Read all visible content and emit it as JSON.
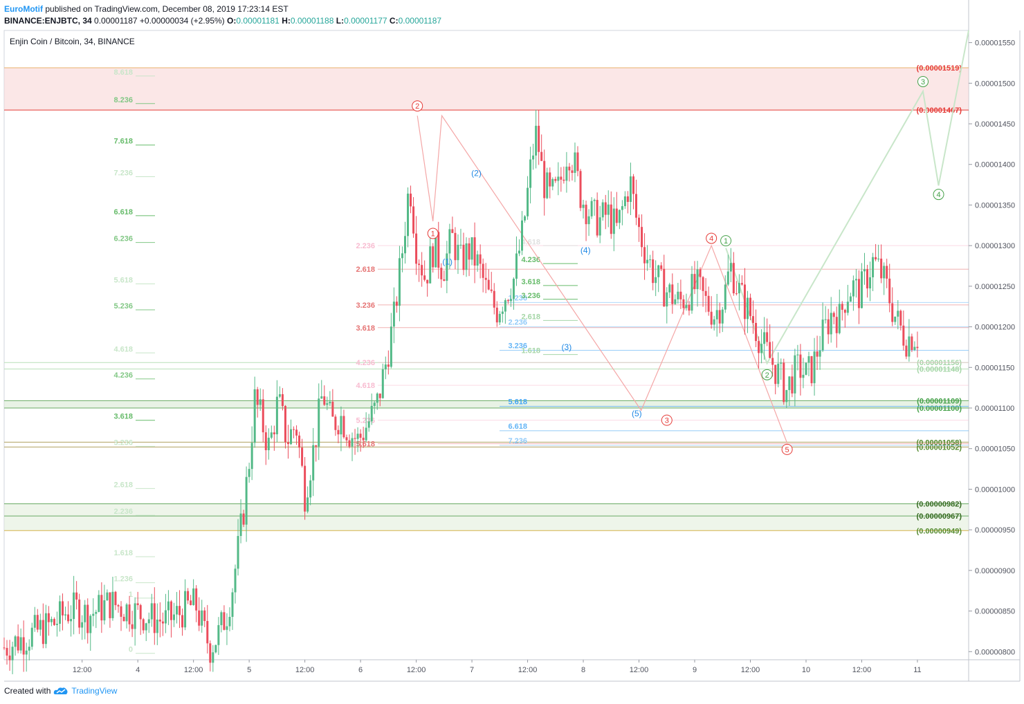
{
  "header": {
    "author": "EuroMotif",
    "published": "published on TradingView.com, December 08, 2019 17:23:14 EST",
    "symbol": "BINANCE:ENJBTC, 34",
    "last": "0.00001187",
    "change": "+0.00000034 (+2.95%)",
    "o_label": "O:",
    "o": "0.00001181",
    "h_label": "H:",
    "h": "0.00001188",
    "l_label": "L:",
    "l": "0.00001177",
    "c_label": "C:",
    "c": "0.00001187"
  },
  "footer": {
    "created_with": "Created with",
    "brand": "TradingView"
  },
  "chart_data": {
    "type": "candlestick",
    "title": "Enjin Coin / Bitcoin, 34, BINANCE",
    "y_axis": {
      "ticks": [
        "0.00001550",
        "0.00001500",
        "0.00001450",
        "0.00001400",
        "0.00001350",
        "0.00001300",
        "0.00001250",
        "0.00001200",
        "0.00001150",
        "0.00001100",
        "0.00001050",
        "0.00001000",
        "0.00000950",
        "0.00000900",
        "0.00000850",
        "0.00000800"
      ],
      "range": [
        7.9e-06,
        1.565e-05
      ]
    },
    "x_axis": {
      "ticks": [
        {
          "label": "12:00",
          "t": 0.7
        },
        {
          "label": "4",
          "t": 1.2
        },
        {
          "label": "12:00",
          "t": 1.7
        },
        {
          "label": "5",
          "t": 2.2
        },
        {
          "label": "12:00",
          "t": 2.7
        },
        {
          "label": "6",
          "t": 3.2
        },
        {
          "label": "12:00",
          "t": 3.7
        },
        {
          "label": "7",
          "t": 4.2
        },
        {
          "label": "12:00",
          "t": 4.7
        },
        {
          "label": "8",
          "t": 5.2
        },
        {
          "label": "12:00",
          "t": 5.7
        },
        {
          "label": "9",
          "t": 6.2
        },
        {
          "label": "12:00",
          "t": 6.7
        },
        {
          "label": "10",
          "t": 7.2
        },
        {
          "label": "12:00",
          "t": 7.7
        },
        {
          "label": "11",
          "t": 8.2
        }
      ],
      "range": [
        0.0,
        8.66
      ]
    },
    "price_path": [
      [
        0.0,
        8.05e-06
      ],
      [
        0.15,
        8.15e-06
      ],
      [
        0.3,
        8.25e-06
      ],
      [
        0.45,
        8.35e-06
      ],
      [
        0.55,
        8.48e-06
      ],
      [
        0.65,
        8.53e-06
      ],
      [
        0.75,
        8.45e-06
      ],
      [
        0.85,
        8.52e-06
      ],
      [
        0.95,
        8.6e-06
      ],
      [
        1.05,
        8.55e-06
      ],
      [
        1.15,
        8.5e-06
      ],
      [
        1.25,
        8.45e-06
      ],
      [
        1.35,
        8.4e-06
      ],
      [
        1.45,
        8.38e-06
      ],
      [
        1.55,
        8.45e-06
      ],
      [
        1.65,
        8.55e-06
      ],
      [
        1.72,
        8.58e-06
      ],
      [
        1.78,
        8.3e-06
      ],
      [
        1.85,
        8.05e-06
      ],
      [
        1.92,
        8.2e-06
      ],
      [
        2.0,
        8.48e-06
      ],
      [
        2.05,
        8.8e-06
      ],
      [
        2.1,
        9.25e-06
      ],
      [
        2.15,
        9.75e-06
      ],
      [
        2.2,
        1.035e-05
      ],
      [
        2.25,
        1.11e-05
      ],
      [
        2.3,
        1.09e-05
      ],
      [
        2.38,
        1.05e-05
      ],
      [
        2.46,
        1.11e-05
      ],
      [
        2.54,
        1.06e-05
      ],
      [
        2.62,
        1.08e-05
      ],
      [
        2.7,
        9.95e-06
      ],
      [
        2.78,
        1.05e-05
      ],
      [
        2.86,
        1.12e-05
      ],
      [
        2.94,
        1.08e-05
      ],
      [
        3.02,
        1.09e-05
      ],
      [
        3.1,
        1.07e-05
      ],
      [
        3.18,
        1.06e-05
      ],
      [
        3.26,
        1.08e-05
      ],
      [
        3.34,
        1.1e-05
      ],
      [
        3.42,
        1.15e-05
      ],
      [
        3.5,
        1.21e-05
      ],
      [
        3.58,
        1.3e-05
      ],
      [
        3.64,
        1.38e-05
      ],
      [
        3.7,
        1.3e-05
      ],
      [
        3.78,
        1.26e-05
      ],
      [
        3.86,
        1.3e-05
      ],
      [
        3.94,
        1.27e-05
      ],
      [
        4.02,
        1.31e-05
      ],
      [
        4.1,
        1.28e-05
      ],
      [
        4.18,
        1.295e-05
      ],
      [
        4.26,
        1.275e-05
      ],
      [
        4.34,
        1.24e-05
      ],
      [
        4.42,
        1.22e-05
      ],
      [
        4.5,
        1.24e-05
      ],
      [
        4.58,
        1.26e-05
      ],
      [
        4.66,
        1.32e-05
      ],
      [
        4.74,
        1.41e-05
      ],
      [
        4.78,
        1.44e-05
      ],
      [
        4.84,
        1.38e-05
      ],
      [
        4.9,
        1.36e-05
      ],
      [
        4.98,
        1.37e-05
      ],
      [
        5.06,
        1.42e-05
      ],
      [
        5.12,
        1.4e-05
      ],
      [
        5.18,
        1.36e-05
      ],
      [
        5.26,
        1.34e-05
      ],
      [
        5.34,
        1.33e-05
      ],
      [
        5.42,
        1.34e-05
      ],
      [
        5.5,
        1.32e-05
      ],
      [
        5.56,
        1.35e-05
      ],
      [
        5.62,
        1.38e-05
      ],
      [
        5.68,
        1.33e-05
      ],
      [
        5.74,
        1.3e-05
      ],
      [
        5.82,
        1.27e-05
      ],
      [
        5.9,
        1.25e-05
      ],
      [
        5.98,
        1.24e-05
      ],
      [
        6.06,
        1.23e-05
      ],
      [
        6.14,
        1.24e-05
      ],
      [
        6.22,
        1.25e-05
      ],
      [
        6.3,
        1.23e-05
      ],
      [
        6.38,
        1.215e-05
      ],
      [
        6.46,
        1.235e-05
      ],
      [
        6.52,
        1.275e-05
      ],
      [
        6.58,
        1.25e-05
      ],
      [
        6.64,
        1.23e-05
      ],
      [
        6.72,
        1.21e-05
      ],
      [
        6.8,
        1.18e-05
      ],
      [
        6.88,
        1.16e-05
      ],
      [
        6.96,
        1.14e-05
      ],
      [
        7.02,
        1.12e-05
      ],
      [
        7.08,
        1.14e-05
      ],
      [
        7.14,
        1.15e-05
      ],
      [
        7.2,
        1.14e-05
      ],
      [
        7.26,
        1.15e-05
      ],
      [
        7.32,
        1.18e-05
      ],
      [
        7.38,
        1.2e-05
      ],
      [
        7.44,
        1.22e-05
      ],
      [
        7.5,
        1.21e-05
      ],
      [
        7.56,
        1.24e-05
      ],
      [
        7.62,
        1.25e-05
      ],
      [
        7.68,
        1.24e-05
      ],
      [
        7.74,
        1.26e-05
      ],
      [
        7.8,
        1.28e-05
      ],
      [
        7.86,
        1.27e-05
      ],
      [
        7.92,
        1.25e-05
      ],
      [
        7.98,
        1.22e-05
      ],
      [
        8.04,
        1.2e-05
      ],
      [
        8.1,
        1.185e-05
      ],
      [
        8.16,
        1.19e-05
      ],
      [
        8.22,
        1.187e-05
      ]
    ],
    "x_map": {
      "data_t": [
        0.0,
        8.22
      ],
      "note_t_axis": "days from chart start"
    },
    "zones": [
      {
        "from": 1.467e-05,
        "to": 1.519e-05,
        "color": "#f8d7d7"
      },
      {
        "from": 1.1e-05,
        "to": 1.109e-05,
        "color": "#d9ead3"
      },
      {
        "from": 9.49e-06,
        "to": 9.82e-06,
        "color": "#e3efdc"
      }
    ],
    "levels": [
      {
        "price": 1.519e-05,
        "color": "#e8b26b",
        "label": "(0.00001519)",
        "label_color": "#e53935"
      },
      {
        "price": 1.467e-05,
        "color": "#e53935",
        "label": "(0.00001467)",
        "label_color": "#e53935"
      },
      {
        "price": 1.156e-05,
        "color": "#b7dfb7",
        "label": "(0.00001156)",
        "label_color": "#a5d6a7"
      },
      {
        "price": 1.148e-05,
        "color": "#b7dfb7",
        "label": "(0.00001148)",
        "label_color": "#a5d6a7"
      },
      {
        "price": 1.109e-05,
        "color": "#6aaa64",
        "label": "(0.00001109)",
        "label_color": "#43a047"
      },
      {
        "price": 1.1e-05,
        "color": "#6aaa64",
        "label": "(0.00001100)",
        "label_color": "#43a047"
      },
      {
        "price": 1.058e-05,
        "color": "#b0a060",
        "label": "(0.00001058)",
        "label_color": "#558b2f"
      },
      {
        "price": 1.052e-05,
        "color": "#b0a060",
        "label": "(0.00001052)",
        "label_color": "#558b2f"
      },
      {
        "price": 9.82e-06,
        "color": "#6aaa64",
        "label": "(0.00000982)",
        "label_color": "#33691e"
      },
      {
        "price": 9.67e-06,
        "color": "#6aaa64",
        "label": "(0.00000967)",
        "label_color": "#33691e"
      },
      {
        "price": 9.49e-06,
        "color": "#d4b44a",
        "label": "(0.00000949)",
        "label_color": "#558b2f"
      }
    ],
    "fib_left": [
      {
        "label": "8.618",
        "price": 1.514e-05,
        "color": "#c8e6c9"
      },
      {
        "label": "8.236",
        "price": 1.48e-05,
        "color": "#81c784"
      },
      {
        "label": "7.618",
        "price": 1.429e-05,
        "color": "#66bb6a"
      },
      {
        "label": "7.236",
        "price": 1.39e-05,
        "color": "#c8e6c9"
      },
      {
        "label": "6.618",
        "price": 1.342e-05,
        "color": "#66bb6a"
      },
      {
        "label": "6.236",
        "price": 1.309e-05,
        "color": "#81c784"
      },
      {
        "label": "5.618",
        "price": 1.258e-05,
        "color": "#c8e6c9"
      },
      {
        "label": "5.236",
        "price": 1.226e-05,
        "color": "#81c784"
      },
      {
        "label": "4.618",
        "price": 1.173e-05,
        "color": "#c8e6c9"
      },
      {
        "label": "4.236",
        "price": 1.141e-05,
        "color": "#81c784"
      },
      {
        "label": "3.618",
        "price": 1.09e-05,
        "color": "#66bb6a"
      },
      {
        "label": "3.236",
        "price": 1.058e-05,
        "color": "#c8e6c9"
      },
      {
        "label": "2.618",
        "price": 1.006e-05,
        "color": "#c8e6c9"
      },
      {
        "label": "2.236",
        "price": 9.73e-06,
        "color": "#c8e6c9"
      },
      {
        "label": "1.618",
        "price": 9.22e-06,
        "color": "#c8e6c9"
      },
      {
        "label": "1.236",
        "price": 8.9e-06,
        "color": "#c8e6c9"
      },
      {
        "label": "1",
        "price": 8.71e-06,
        "color": "#c8e6c9"
      },
      {
        "label": "0",
        "price": 8.03e-06,
        "color": "#c8e6c9"
      }
    ],
    "fib_mid_red": [
      {
        "label": "2.236",
        "price": 1.3e-05,
        "color": "#f8bbd0"
      },
      {
        "label": "2.618",
        "price": 1.271e-05,
        "color": "#e57373"
      },
      {
        "label": "3.236",
        "price": 1.227e-05,
        "color": "#e57373"
      },
      {
        "label": "3.618",
        "price": 1.199e-05,
        "color": "#e57373"
      },
      {
        "label": "4.236",
        "price": 1.156e-05,
        "color": "#f8bbd0"
      },
      {
        "label": "4.618",
        "price": 1.128e-05,
        "color": "#f8bbd0"
      },
      {
        "label": "5.236",
        "price": 1.085e-05,
        "color": "#f8bbd0"
      },
      {
        "label": "5.618",
        "price": 1.056e-05,
        "color": "#e57373"
      }
    ],
    "fib_mid_blue": [
      {
        "label": "1.236",
        "price": 1.23e-05,
        "color": "#90caf9"
      },
      {
        "label": "2.236",
        "price": 1.2e-05,
        "color": "#90caf9"
      },
      {
        "label": "3.236",
        "price": 1.171e-05,
        "color": "#64b5f6"
      },
      {
        "label": "5.618",
        "price": 1.102e-05,
        "color": "#42a5f5"
      },
      {
        "label": "6.618",
        "price": 1.072e-05,
        "color": "#64b5f6"
      },
      {
        "label": "7.236",
        "price": 1.054e-05,
        "color": "#90caf9"
      }
    ],
    "fib_right_green": [
      {
        "label": "4.618",
        "price": 1.305e-05,
        "color": "#e0e0e0"
      },
      {
        "label": "4.236",
        "price": 1.283e-05,
        "color": "#66bb6a"
      },
      {
        "label": "3.618",
        "price": 1.256e-05,
        "color": "#66bb6a"
      },
      {
        "label": "3.236",
        "price": 1.239e-05,
        "color": "#66bb6a"
      },
      {
        "label": "2.618",
        "price": 1.213e-05,
        "color": "#a5d6a7"
      },
      {
        "label": "1.618",
        "price": 1.171e-05,
        "color": "#a5d6a7"
      }
    ],
    "fib_tick_fragments": [
      "18",
      "18",
      "18"
    ],
    "wave_labels": [
      {
        "label": "1",
        "t": 3.85,
        "price": 1.315e-05,
        "style": "red-circle"
      },
      {
        "label": "2",
        "t": 3.71,
        "price": 1.472e-05,
        "style": "red-circle"
      },
      {
        "label": "3",
        "t": 5.95,
        "price": 1.085e-05,
        "style": "red-circle"
      },
      {
        "label": "4",
        "t": 6.35,
        "price": 1.309e-05,
        "style": "red-circle"
      },
      {
        "label": "5",
        "t": 7.03,
        "price": 1.049e-05,
        "style": "red-circle"
      },
      {
        "label": "(1)",
        "t": 3.98,
        "price": 1.28e-05,
        "style": "blue"
      },
      {
        "label": "(2)",
        "t": 4.24,
        "price": 1.389e-05,
        "style": "blue"
      },
      {
        "label": "(3)",
        "t": 5.05,
        "price": 1.175e-05,
        "style": "blue"
      },
      {
        "label": "(4)",
        "t": 5.22,
        "price": 1.294e-05,
        "style": "blue"
      },
      {
        "label": "(5)",
        "t": 5.68,
        "price": 1.093e-05,
        "style": "blue"
      },
      {
        "label": "1",
        "t": 6.48,
        "price": 1.306e-05,
        "style": "green-circle"
      },
      {
        "label": "2",
        "t": 6.85,
        "price": 1.141e-05,
        "style": "green-circle"
      },
      {
        "label": "3",
        "t": 8.25,
        "price": 1.502e-05,
        "style": "green-circle"
      },
      {
        "label": "4",
        "t": 8.39,
        "price": 1.363e-05,
        "style": "green-circle"
      }
    ],
    "projection_red": [
      [
        3.71,
        1.46e-05
      ],
      [
        3.85,
        1.33e-05
      ],
      [
        3.93,
        1.46e-05
      ],
      [
        5.72,
        1.097e-05
      ],
      [
        6.35,
        1.3e-05
      ],
      [
        7.03,
        1.057e-05
      ]
    ],
    "projection_green": [
      [
        6.48,
        1.297e-05
      ],
      [
        6.85,
        1.155e-05
      ],
      [
        8.25,
        1.49e-05
      ],
      [
        8.39,
        1.374e-05
      ],
      [
        8.66,
        1.565e-05
      ]
    ]
  }
}
